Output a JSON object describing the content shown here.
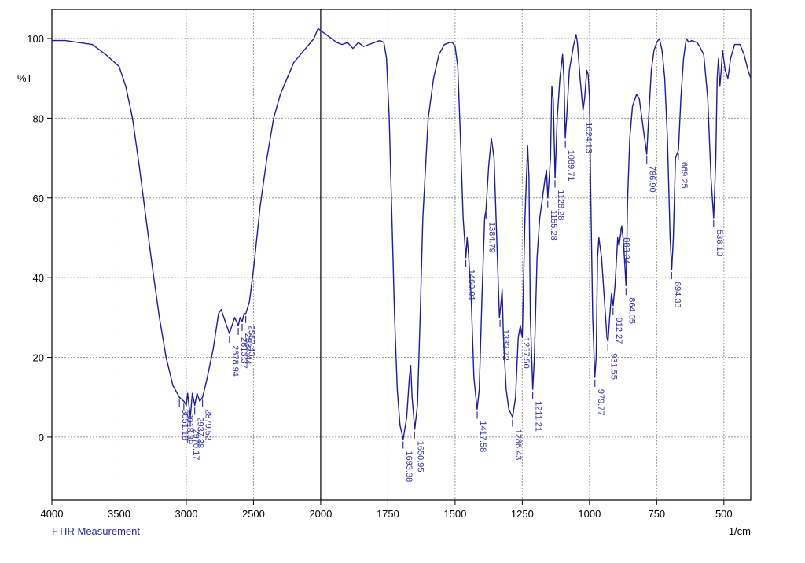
{
  "chart_data": {
    "type": "line",
    "caption": "FTIR Measurement",
    "x_label": "1/cm",
    "y_label": "%T",
    "xlim": [
      4000,
      400
    ],
    "x_scale_break": 2000,
    "xticks": [
      4000,
      3500,
      3000,
      2500,
      2000,
      1750,
      1500,
      1250,
      1000,
      750,
      500
    ],
    "ylim": [
      -15.8,
      107.3
    ],
    "yticks": [
      0,
      20,
      40,
      60,
      80,
      100
    ],
    "grid": true,
    "x": [
      4000,
      3900,
      3800,
      3700,
      3600,
      3500,
      3450,
      3400,
      3350,
      3300,
      3250,
      3200,
      3150,
      3100,
      3051,
      3018,
      3000,
      2990,
      2970,
      2955,
      2937,
      2920,
      2900,
      2879,
      2850,
      2800,
      2760,
      2740,
      2720,
      2700,
      2679,
      2660,
      2640,
      2613,
      2600,
      2584,
      2570,
      2557,
      2530,
      2500,
      2450,
      2400,
      2350,
      2300,
      2250,
      2200,
      2150,
      2100,
      2050,
      2020,
      2000,
      1980,
      1960,
      1940,
      1920,
      1900,
      1880,
      1860,
      1840,
      1820,
      1800,
      1780,
      1765,
      1755,
      1745,
      1735,
      1725,
      1715,
      1705,
      1693,
      1680,
      1670,
      1665,
      1660,
      1650,
      1640,
      1630,
      1620,
      1600,
      1580,
      1560,
      1540,
      1520,
      1510,
      1500,
      1490,
      1480,
      1470,
      1460,
      1455,
      1450,
      1440,
      1430,
      1418,
      1410,
      1400,
      1390,
      1385,
      1375,
      1365,
      1355,
      1345,
      1335,
      1330,
      1325,
      1320,
      1310,
      1300,
      1286,
      1275,
      1265,
      1257,
      1250,
      1240,
      1230,
      1225,
      1220,
      1211,
      1205,
      1195,
      1185,
      1175,
      1165,
      1160,
      1155,
      1145,
      1140,
      1135,
      1128,
      1120,
      1110,
      1100,
      1095,
      1090,
      1085,
      1075,
      1060,
      1050,
      1045,
      1035,
      1024,
      1018,
      1010,
      1005,
      1000,
      995,
      988,
      980,
      975,
      970,
      965,
      955,
      945,
      935,
      931,
      925,
      918,
      912,
      905,
      895,
      890,
      880,
      875,
      870,
      864,
      858,
      850,
      840,
      825,
      815,
      805,
      795,
      787,
      780,
      770,
      760,
      750,
      740,
      730,
      720,
      710,
      700,
      694,
      688,
      680,
      669,
      660,
      650,
      640,
      630,
      620,
      600,
      590,
      575,
      560,
      548,
      538,
      530,
      525,
      520,
      515,
      510,
      505,
      495,
      485,
      475,
      460,
      440,
      425,
      410,
      400
    ],
    "series": [
      {
        "color": "#1c1ca0",
        "values": [
          99.5,
          99.5,
          99,
          98.5,
          96,
          93,
          88,
          80,
          68,
          55,
          42,
          30,
          20,
          13,
          10,
          9,
          8,
          11,
          5,
          11,
          8,
          11,
          9,
          10,
          14,
          22,
          31,
          32,
          30,
          28,
          26,
          28,
          30,
          28,
          30,
          29,
          31,
          31,
          34,
          42,
          58,
          70,
          80,
          86,
          90,
          94,
          96,
          98,
          100,
          102.5,
          102,
          101,
          100,
          99,
          98.5,
          99,
          97.5,
          99,
          98,
          98.5,
          99,
          99.5,
          99,
          95,
          80,
          55,
          30,
          12,
          3,
          -0.5,
          5,
          15,
          18,
          10,
          2,
          8,
          30,
          55,
          80,
          90,
          96,
          98.5,
          99,
          99,
          98,
          93,
          75,
          55,
          45,
          50,
          46,
          35,
          15,
          7,
          12,
          35,
          55,
          57,
          68,
          75,
          70,
          50,
          30,
          33,
          37,
          25,
          12,
          7,
          5,
          10,
          25,
          28,
          25,
          55,
          73,
          65,
          30,
          12,
          20,
          45,
          55,
          60,
          65,
          67,
          60,
          70,
          88,
          85,
          65,
          80,
          90,
          96,
          90,
          75,
          80,
          92,
          98,
          101,
          99,
          90,
          82,
          85,
          92,
          91,
          85,
          60,
          30,
          15,
          20,
          45,
          50,
          45,
          35,
          25,
          24,
          30,
          36,
          33,
          38,
          50,
          48,
          53,
          50,
          45,
          38,
          60,
          75,
          83,
          86,
          85,
          80,
          75,
          71,
          80,
          92,
          97,
          99,
          100,
          97,
          90,
          75,
          50,
          42,
          50,
          70,
          72,
          85,
          95,
          100,
          99,
          99.5,
          99,
          98,
          96,
          85,
          65,
          55,
          70,
          90,
          95,
          88,
          92,
          97,
          92,
          90,
          95,
          98.5,
          98.5,
          96,
          92,
          90
        ]
      }
    ],
    "label_color": "#3333aa",
    "peaks": [
      {
        "x": 3051.18,
        "y": 10,
        "label": "3051.18"
      },
      {
        "x": 3018.39,
        "y": 9,
        "label": "3018.39"
      },
      {
        "x": 2970.17,
        "y": 5,
        "label": "2970.17"
      },
      {
        "x": 2937.38,
        "y": 8,
        "label": "2937.38"
      },
      {
        "x": 2879.52,
        "y": 10,
        "label": "2879.52"
      },
      {
        "x": 2678.94,
        "y": 26,
        "label": "2678.94"
      },
      {
        "x": 2613.37,
        "y": 28,
        "label": "2613.37"
      },
      {
        "x": 2584.44,
        "y": 29,
        "label": "2584.44"
      },
      {
        "x": 2557.43,
        "y": 31,
        "label": "2557.43"
      },
      {
        "x": 1693.38,
        "y": -0.5,
        "label": "1693.38"
      },
      {
        "x": 1650.95,
        "y": 2,
        "label": "1650.95"
      },
      {
        "x": 1460.01,
        "y": 45,
        "label": "1460.01"
      },
      {
        "x": 1417.58,
        "y": 7,
        "label": "1417.58"
      },
      {
        "x": 1384.79,
        "y": 57,
        "label": "1384.79"
      },
      {
        "x": 1332.72,
        "y": 30,
        "label": "1332.72"
      },
      {
        "x": 1286.43,
        "y": 5,
        "label": "1286.43"
      },
      {
        "x": 1257.5,
        "y": 28,
        "label": "1257.50"
      },
      {
        "x": 1211.21,
        "y": 12,
        "label": "1211.21"
      },
      {
        "x": 1155.28,
        "y": 60,
        "label": "1155.28"
      },
      {
        "x": 1128.28,
        "y": 65,
        "label": "1128.28"
      },
      {
        "x": 1089.71,
        "y": 75,
        "label": "1089.71"
      },
      {
        "x": 1024.13,
        "y": 82,
        "label": "1024.13"
      },
      {
        "x": 979.77,
        "y": 15,
        "label": "979.77"
      },
      {
        "x": 931.55,
        "y": 24,
        "label": "931.55"
      },
      {
        "x": 912.27,
        "y": 33,
        "label": "912.27"
      },
      {
        "x": 883.34,
        "y": 53,
        "label": "883.34"
      },
      {
        "x": 864.05,
        "y": 38,
        "label": "864.05"
      },
      {
        "x": 786.9,
        "y": 71,
        "label": "786.90"
      },
      {
        "x": 694.33,
        "y": 42,
        "label": "694.33"
      },
      {
        "x": 669.25,
        "y": 72,
        "label": "669.25"
      },
      {
        "x": 538.1,
        "y": 55,
        "label": "538.10"
      }
    ]
  }
}
